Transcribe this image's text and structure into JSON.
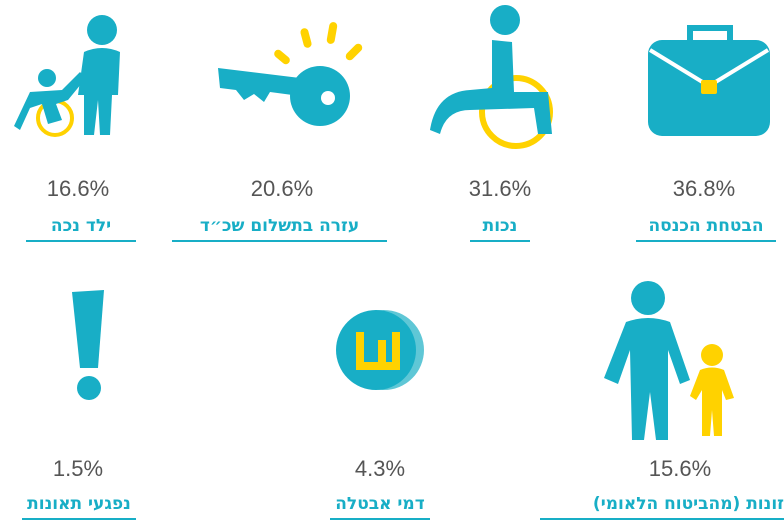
{
  "items": [
    {
      "value": "16.6%",
      "label": "ילד נכה"
    },
    {
      "value": "20.6%",
      "label": "עזרה בתשלום שכ״ד"
    },
    {
      "value": "31.6%",
      "label": "נכות"
    },
    {
      "value": "36.8%",
      "label": "הבטחת הכנסה"
    },
    {
      "value": "1.5%",
      "label": "נפגעי תאונות"
    },
    {
      "value": "4.3%",
      "label": "דמי אבטלה"
    },
    {
      "value": "15.6%",
      "label": "זונות (מהביטוח הלאומי)"
    }
  ]
}
